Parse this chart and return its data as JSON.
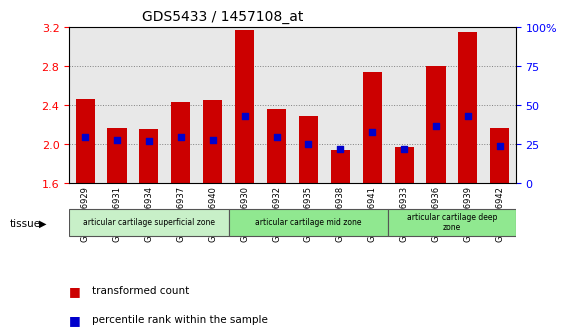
{
  "title": "GDS5433 / 1457108_at",
  "samples": [
    "GSM1256929",
    "GSM1256931",
    "GSM1256934",
    "GSM1256937",
    "GSM1256940",
    "GSM1256930",
    "GSM1256932",
    "GSM1256935",
    "GSM1256938",
    "GSM1256941",
    "GSM1256933",
    "GSM1256936",
    "GSM1256939",
    "GSM1256942"
  ],
  "transformed_count": [
    2.46,
    2.17,
    2.16,
    2.43,
    2.45,
    3.17,
    2.36,
    2.29,
    1.94,
    2.74,
    1.97,
    2.8,
    3.15,
    2.17
  ],
  "percentile_rank": [
    30,
    28,
    27,
    30,
    28,
    43,
    30,
    25,
    22,
    33,
    22,
    37,
    43,
    24
  ],
  "ylim_left": [
    1.6,
    3.2
  ],
  "ylim_right": [
    0,
    100
  ],
  "yticks_left": [
    1.6,
    2.0,
    2.4,
    2.8,
    3.2
  ],
  "yticks_right": [
    0,
    25,
    50,
    75,
    100
  ],
  "bar_color": "#cc0000",
  "percentile_color": "#0000cc",
  "bg_color": "#e8e8e8",
  "tissue_groups": [
    {
      "label": "articular cartilage superficial zone",
      "start": 0,
      "end": 5,
      "color": "#c8f0c8"
    },
    {
      "label": "articular cartilage mid zone",
      "start": 5,
      "end": 10,
      "color": "#90e890"
    },
    {
      "label": "articular cartilage deep\nzone",
      "start": 10,
      "end": 14,
      "color": "#90e890"
    }
  ],
  "tissue_label": "tissue",
  "legend_items": [
    {
      "label": "transformed count",
      "color": "#cc0000"
    },
    {
      "label": "percentile rank within the sample",
      "color": "#0000cc"
    }
  ]
}
